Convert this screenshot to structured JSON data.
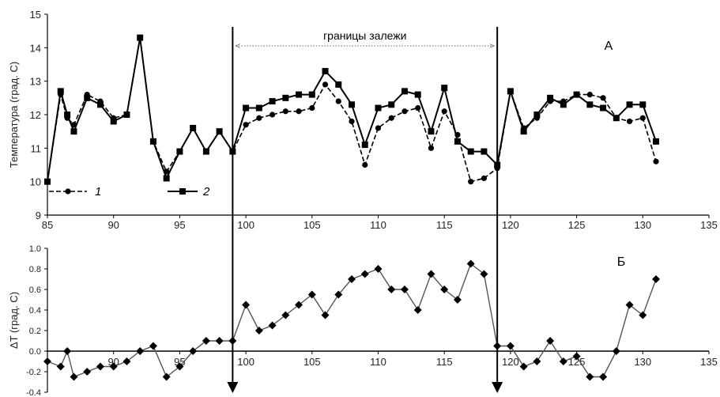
{
  "chart_data": [
    {
      "type": "line",
      "panel_label": "А",
      "ylabel": "Температура (град. С)",
      "xlim": [
        85,
        135
      ],
      "ylim": [
        9,
        15
      ],
      "xticks": [
        "85",
        "90",
        "95",
        "100",
        "105",
        "110",
        "115",
        "120",
        "125",
        "130",
        "135"
      ],
      "yticks": [
        "9",
        "10",
        "11",
        "12",
        "13",
        "14",
        "15"
      ],
      "annotation": "границы залежи",
      "boundaries_x": [
        99,
        119
      ],
      "legend": [
        "1",
        "2"
      ],
      "series": [
        {
          "name": "1",
          "style": "dashed-circle",
          "x": [
            85,
            86,
            86.5,
            87,
            88,
            89,
            90,
            91,
            92,
            93,
            94,
            95,
            96,
            97,
            98,
            99,
            100,
            101,
            102,
            103,
            104,
            105,
            106,
            107,
            108,
            109,
            110,
            111,
            112,
            113,
            114,
            115,
            116,
            117,
            118,
            119,
            120,
            121,
            122,
            123,
            124,
            125,
            126,
            127,
            128,
            129,
            130,
            131
          ],
          "y": [
            10.0,
            12.6,
            11.9,
            11.7,
            12.6,
            12.4,
            11.9,
            12.0,
            14.3,
            11.2,
            10.3,
            10.9,
            11.6,
            10.9,
            11.5,
            10.9,
            11.7,
            11.9,
            12.0,
            12.1,
            12.1,
            12.2,
            12.9,
            12.4,
            11.8,
            10.5,
            11.6,
            11.9,
            12.1,
            12.2,
            11.0,
            12.1,
            11.4,
            10.0,
            10.1,
            10.4,
            12.7,
            11.6,
            11.9,
            12.4,
            12.4,
            12.6,
            12.6,
            12.5,
            11.9,
            11.8,
            11.9,
            10.6
          ]
        },
        {
          "name": "2",
          "style": "solid-square",
          "x": [
            85,
            86,
            86.5,
            87,
            88,
            89,
            90,
            91,
            92,
            93,
            94,
            95,
            96,
            97,
            98,
            99,
            100,
            101,
            102,
            103,
            104,
            105,
            106,
            107,
            108,
            109,
            110,
            111,
            112,
            113,
            114,
            115,
            116,
            117,
            118,
            119,
            120,
            121,
            122,
            123,
            124,
            125,
            126,
            127,
            128,
            129,
            130,
            131
          ],
          "y": [
            10.0,
            12.7,
            12.0,
            11.5,
            12.5,
            12.3,
            11.8,
            12.0,
            14.3,
            11.2,
            10.1,
            10.9,
            11.6,
            10.9,
            11.5,
            10.9,
            12.2,
            12.2,
            12.4,
            12.5,
            12.6,
            12.6,
            13.3,
            12.9,
            12.3,
            11.1,
            12.2,
            12.3,
            12.7,
            12.6,
            11.5,
            12.8,
            11.2,
            10.9,
            10.9,
            10.5,
            12.7,
            11.5,
            12.0,
            12.5,
            12.3,
            12.6,
            12.3,
            12.2,
            11.9,
            12.3,
            12.3,
            11.2
          ]
        }
      ]
    },
    {
      "type": "line",
      "panel_label": "Б",
      "ylabel": "ΔT (град. С)",
      "xlim": [
        85,
        135
      ],
      "ylim": [
        -0.4,
        1.0
      ],
      "xticks": [
        "90",
        "95",
        "100",
        "105",
        "110",
        "115",
        "120",
        "125",
        "130",
        "135"
      ],
      "yticks": [
        "-0.4",
        "-0.2",
        "0.0",
        "0.2",
        "0.4",
        "0.6",
        "0.8",
        "1.0"
      ],
      "boundaries_x": [
        99,
        119
      ],
      "series": [
        {
          "name": "",
          "style": "diamond",
          "x": [
            85,
            86,
            86.5,
            87,
            88,
            89,
            90,
            91,
            92,
            93,
            94,
            95,
            96,
            97,
            98,
            99,
            100,
            101,
            102,
            103,
            104,
            105,
            106,
            107,
            108,
            109,
            110,
            111,
            112,
            113,
            114,
            115,
            116,
            117,
            118,
            119,
            120,
            121,
            122,
            123,
            124,
            125,
            126,
            127,
            128,
            129,
            130,
            131
          ],
          "y": [
            -0.1,
            -0.15,
            0.0,
            -0.25,
            -0.2,
            -0.15,
            -0.15,
            -0.1,
            0.0,
            0.05,
            -0.25,
            -0.15,
            0.0,
            0.1,
            0.1,
            0.1,
            0.45,
            0.2,
            0.25,
            0.35,
            0.45,
            0.55,
            0.35,
            0.55,
            0.7,
            0.75,
            0.8,
            0.6,
            0.6,
            0.4,
            0.75,
            0.6,
            0.5,
            0.85,
            0.75,
            0.05,
            0.05,
            -0.15,
            -0.1,
            0.1,
            -0.1,
            -0.05,
            -0.25,
            -0.25,
            0.0,
            0.45,
            0.35,
            0.7
          ]
        }
      ]
    }
  ]
}
